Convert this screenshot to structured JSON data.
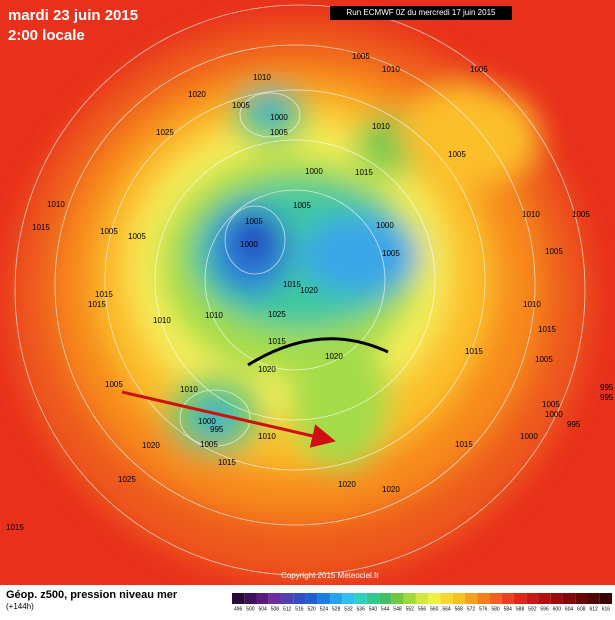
{
  "header": {
    "date": "mardi 23 juin 2015",
    "time": "2:00 locale",
    "run": "Run ECMWF 0Z du mercredi 17 juin 2015"
  },
  "footer": {
    "field": "Géop. z500, pression niveau mer",
    "lead": "(+144h)",
    "copyright": "Copyright 2015 Meteociel.fr"
  },
  "isobar_labels": [
    "1010",
    "1005",
    "1000",
    "1005",
    "1020",
    "1025",
    "1010",
    "1005",
    "1010",
    "1005",
    "1005",
    "1010",
    "1005",
    "1005",
    "1005",
    "1000",
    "1005",
    "1000",
    "1005",
    "1000",
    "1015",
    "1020",
    "1015",
    "1010",
    "1010",
    "1005",
    "1015",
    "1010",
    "1015",
    "1005",
    "1015",
    "1010",
    "1015",
    "1005",
    "1010",
    "1000",
    "995",
    "1005",
    "1015",
    "1025",
    "1020",
    "1015",
    "1025",
    "1020",
    "1020",
    "1020",
    "1020",
    "1015",
    "1000",
    "1005",
    "1000",
    "995",
    "995",
    "995",
    "1005",
    "1015",
    "1010",
    "1015"
  ],
  "legend": {
    "scale": [
      496,
      500,
      504,
      508,
      512,
      516,
      520,
      524,
      528,
      532,
      536,
      540,
      544,
      548,
      552,
      556,
      560,
      564,
      568,
      572,
      576,
      580,
      584,
      588,
      592,
      596,
      600,
      604,
      608,
      612,
      616
    ]
  }
}
